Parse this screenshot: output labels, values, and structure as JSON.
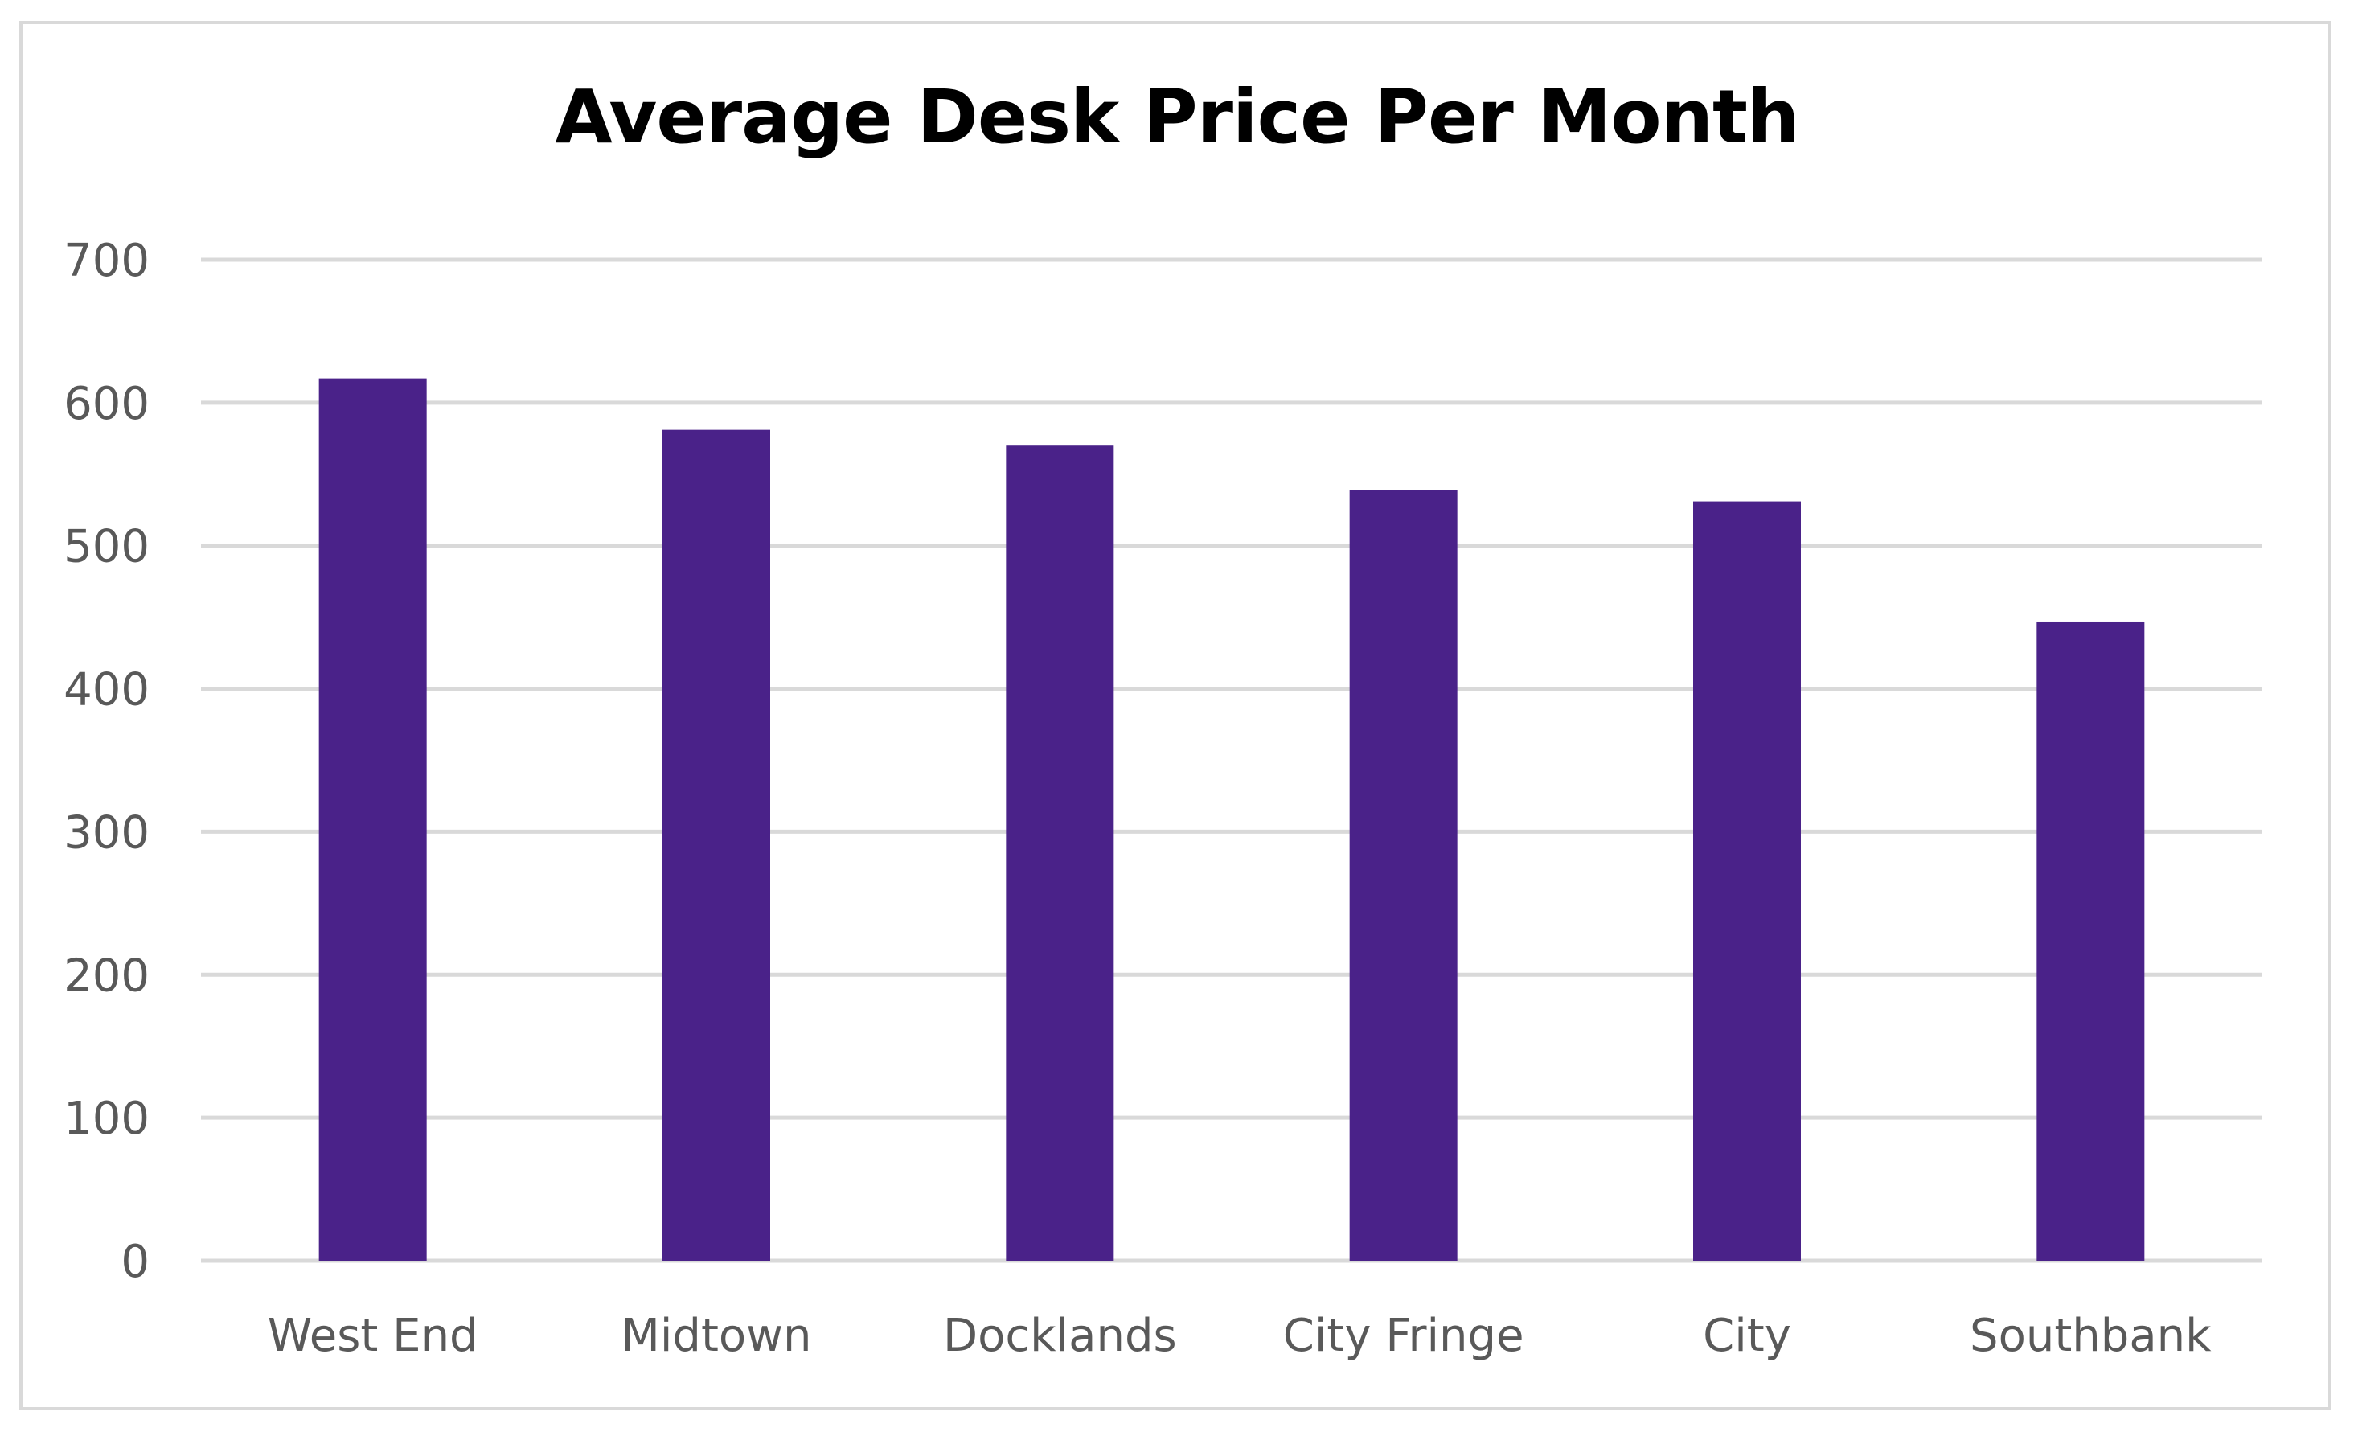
{
  "chart_data": {
    "type": "bar",
    "title": "Average Desk Price Per Month",
    "xlabel": "",
    "ylabel": "",
    "categories": [
      "West End",
      "Midtown",
      "Docklands",
      "City Fringe",
      "City",
      "Southbank"
    ],
    "values": [
      617,
      581,
      570,
      539,
      531,
      447
    ],
    "ylim": [
      0,
      700
    ],
    "yticks": [
      "0",
      "100",
      "200",
      "300",
      "400",
      "500",
      "600",
      "700"
    ],
    "grid": true,
    "legend": "none",
    "colors": {
      "bar": "#4a2289",
      "gridline": "#d9d9d9",
      "tick_text": "#595959",
      "title": "#000000"
    }
  }
}
